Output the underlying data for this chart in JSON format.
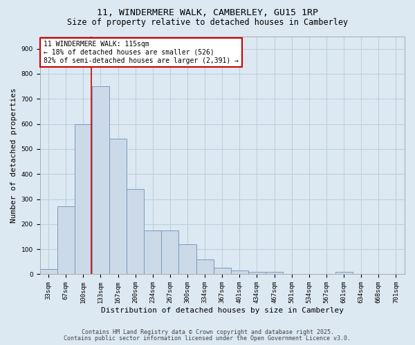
{
  "title_line1": "11, WINDERMERE WALK, CAMBERLEY, GU15 1RP",
  "title_line2": "Size of property relative to detached houses in Camberley",
  "xlabel": "Distribution of detached houses by size in Camberley",
  "ylabel": "Number of detached properties",
  "categories": [
    "33sqm",
    "67sqm",
    "100sqm",
    "133sqm",
    "167sqm",
    "200sqm",
    "234sqm",
    "267sqm",
    "300sqm",
    "334sqm",
    "367sqm",
    "401sqm",
    "434sqm",
    "467sqm",
    "501sqm",
    "534sqm",
    "567sqm",
    "601sqm",
    "634sqm",
    "668sqm",
    "701sqm"
  ],
  "values": [
    20,
    270,
    600,
    750,
    540,
    340,
    175,
    175,
    120,
    60,
    25,
    15,
    10,
    10,
    0,
    0,
    0,
    10,
    0,
    0,
    0
  ],
  "bar_color": "#ccd9e8",
  "bar_edge_color": "#7a9abf",
  "vline_color": "#cc0000",
  "vline_pos": 2.45,
  "annotation_text": "11 WINDERMERE WALK: 115sqm\n← 18% of detached houses are smaller (526)\n82% of semi-detached houses are larger (2,391) →",
  "annotation_box_facecolor": "#ffffff",
  "annotation_box_edgecolor": "#cc0000",
  "ylim": [
    0,
    950
  ],
  "yticks": [
    0,
    100,
    200,
    300,
    400,
    500,
    600,
    700,
    800,
    900
  ],
  "grid_color": "#b8cedd",
  "bg_color": "#dce8f2",
  "footer_line1": "Contains HM Land Registry data © Crown copyright and database right 2025.",
  "footer_line2": "Contains public sector information licensed under the Open Government Licence v3.0.",
  "title_fontsize": 9.5,
  "subtitle_fontsize": 8.5,
  "ylabel_fontsize": 8,
  "xlabel_fontsize": 8,
  "tick_fontsize": 6.5,
  "annotation_fontsize": 7,
  "footer_fontsize": 6
}
